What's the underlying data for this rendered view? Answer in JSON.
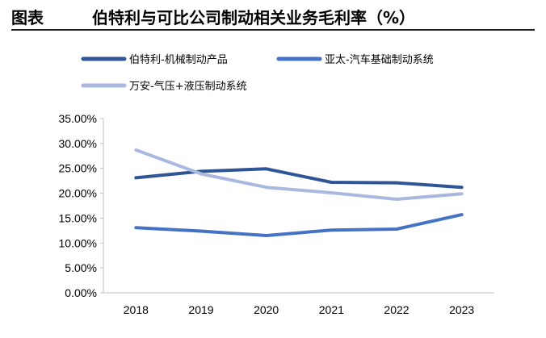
{
  "header": {
    "label": "图表",
    "title": "伯特利与可比公司制动相关业务毛利率（%）"
  },
  "chart_data": {
    "type": "line",
    "title": "伯特利与可比公司制动相关业务毛利率（%）",
    "xlabel": "",
    "ylabel": "",
    "x": [
      "2018",
      "2019",
      "2020",
      "2021",
      "2022",
      "2023"
    ],
    "ylim": [
      0,
      35
    ],
    "y_ticks": [
      0,
      5,
      10,
      15,
      20,
      25,
      30,
      35
    ],
    "y_tick_labels": [
      "0.00%",
      "5.00%",
      "10.00%",
      "15.00%",
      "20.00%",
      "25.00%",
      "30.00%",
      "35.00%"
    ],
    "grid": false,
    "legend_position": "top",
    "series": [
      {
        "name": "伯特利-机械制动产品",
        "color": "#2F5597",
        "values": [
          23.1,
          24.4,
          24.9,
          22.2,
          22.1,
          21.2
        ]
      },
      {
        "name": "亚太-汽车基础制动系统",
        "color": "#4472C4",
        "values": [
          13.1,
          12.4,
          11.5,
          12.6,
          12.8,
          15.7
        ]
      },
      {
        "name": "万安-气压+液压制动系统",
        "color": "#A9B8DE",
        "values": [
          28.7,
          23.9,
          21.2,
          20.1,
          18.8,
          19.9
        ]
      }
    ]
  }
}
